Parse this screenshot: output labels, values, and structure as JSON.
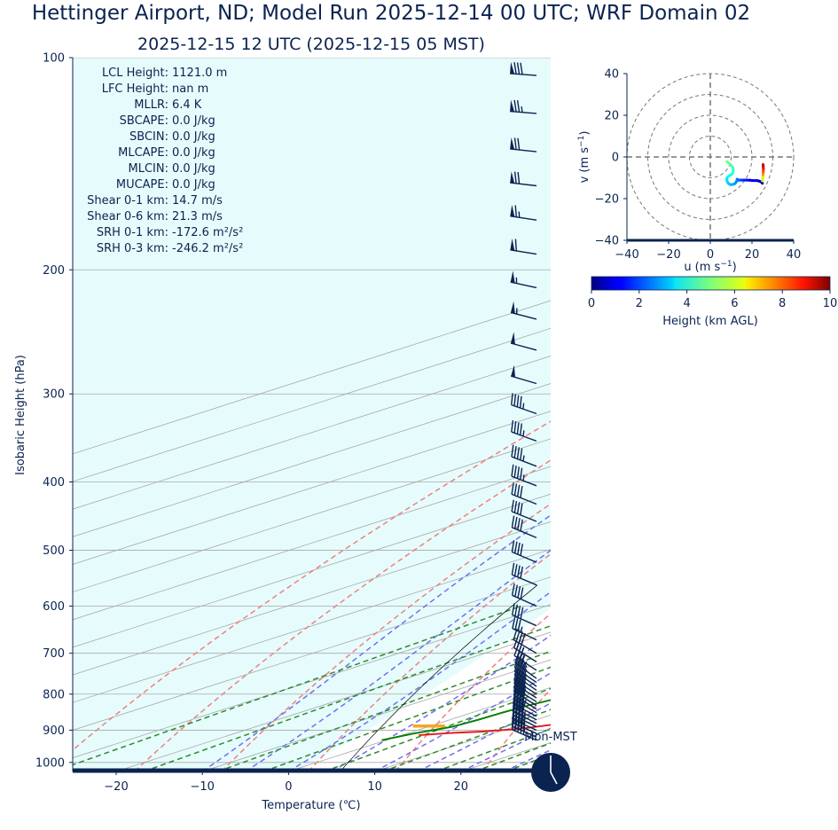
{
  "title": "Hettinger Airport, ND; Model Run 2025-12-14 00 UTC; WRF Domain 02",
  "subtitle": "2025-12-15 12 UTC  (2025-12-15 05 MST)",
  "params": [
    {
      "label": "LCL Height:",
      "value": "1121.0 m"
    },
    {
      "label": "LFC Height:",
      "value": "nan m"
    },
    {
      "label": "MLLR:",
      "value": "6.4 K"
    },
    {
      "label": "SBCAPE:",
      "value": "0.0 J/kg"
    },
    {
      "label": "SBCIN:",
      "value": "0.0 J/kg"
    },
    {
      "label": "MLCAPE:",
      "value": "0.0 J/kg"
    },
    {
      "label": "MLCIN:",
      "value": "0.0 J/kg"
    },
    {
      "label": "MUCAPE:",
      "value": "0.0 J/kg"
    },
    {
      "label": "Shear 0-1 km:",
      "value": "14.7 m/s"
    },
    {
      "label": "Shear 0-6 km:",
      "value": "21.3 m/s"
    },
    {
      "label": "SRH 0-1 km:",
      "value": "-172.6 m²/s²"
    },
    {
      "label": "SRH 0-3 km:",
      "value": "-246.2 m²/s²"
    }
  ],
  "clock_label": "Mon-MST",
  "colors": {
    "temperature": "#e41a1c",
    "dewpoint": "#008000",
    "dry_adiabat": "#f08080",
    "moist_adiabat": "#7070f0",
    "mixing_ratio": "#2e8b2e",
    "isotherm": "#a8a8a8",
    "cape_fill": "#e6fcfc",
    "navy": "#0a2350",
    "lcl_marker": "#f5a623"
  },
  "chart_data": [
    {
      "type": "skewt",
      "xlabel": "Temperature (℃)",
      "ylabel": "Isobaric Height (hPa)",
      "xlim": [
        -25,
        28.5
      ],
      "ylim": [
        1030,
        100
      ],
      "xticks": [
        -20,
        -10,
        0,
        10,
        20
      ],
      "yticks": [
        100,
        200,
        300,
        400,
        500,
        600,
        700,
        800,
        900,
        1000
      ],
      "temperature": {
        "p": [
          915,
          908,
          904,
          898,
          893,
          885,
          870,
          850,
          830,
          810,
          790,
          770,
          750,
          720,
          690,
          660,
          630,
          600,
          570,
          540,
          510,
          480,
          450,
          420,
          390,
          360,
          330,
          300,
          270,
          250,
          230,
          215,
          200,
          185,
          175,
          165,
          150,
          140,
          130,
          120,
          110,
          100
        ],
        "t": [
          2.0,
          5.0,
          8.0,
          10.5,
          12.0,
          13.5,
          14.3,
          14.5,
          14.8,
          15.5,
          16.0,
          16.0,
          15.9,
          15.8,
          15.3,
          14.6,
          13.8,
          12.9,
          11.9,
          10.7,
          9.4,
          8.0,
          6.4,
          4.7,
          2.9,
          0.8,
          -1.5,
          -3.7,
          -5.9,
          -7.2,
          -7.0,
          -6.3,
          -4.2,
          -1.8,
          0.8,
          4.2,
          7.8,
          9.2,
          10.4,
          11.4,
          12.9,
          14.9
        ]
      },
      "dewpoint": {
        "p": [
          930,
          910,
          890,
          870,
          850,
          830,
          810,
          790,
          770,
          750,
          730,
          710,
          690,
          670,
          650,
          630,
          600,
          570,
          540,
          510,
          480,
          450,
          420,
          390,
          360,
          330,
          300,
          270,
          250,
          230,
          210,
          200,
          185,
          175,
          165,
          150,
          140,
          130,
          120,
          110,
          100
        ],
        "t": [
          -0.5,
          0.8,
          2.8,
          3.3,
          3.5,
          3.9,
          4.8,
          6.8,
          8.5,
          8.8,
          7.4,
          4.5,
          1.3,
          0.6,
          0.1,
          -0.2,
          -0.4,
          -0.2,
          0.3,
          0.8,
          1.3,
          1.9,
          2.5,
          2.5,
          2.1,
          0.4,
          -1.9,
          -4.1,
          -5.5,
          -6.8,
          -8.0,
          -8.3,
          -8.4,
          -8.4,
          -8.4,
          -6.7,
          -6.8,
          -7.2,
          -8.0,
          -8.3,
          -8.0
        ]
      },
      "lcl": {
        "p": 888,
        "t_range": [
          -2.0,
          1.7
        ]
      },
      "wind_barbs": [
        {
          "p": 930,
          "u": 21,
          "v": -9
        },
        {
          "p": 920,
          "u": 21,
          "v": -9
        },
        {
          "p": 910,
          "u": 20,
          "v": -9
        },
        {
          "p": 900,
          "u": 20,
          "v": -9
        },
        {
          "p": 890,
          "u": 20,
          "v": -10
        },
        {
          "p": 880,
          "u": 20,
          "v": -10
        },
        {
          "p": 870,
          "u": 19,
          "v": -10
        },
        {
          "p": 860,
          "u": 19,
          "v": -10
        },
        {
          "p": 850,
          "u": 19,
          "v": -11
        },
        {
          "p": 840,
          "u": 18,
          "v": -11
        },
        {
          "p": 830,
          "u": 18,
          "v": -11
        },
        {
          "p": 820,
          "u": 18,
          "v": -11
        },
        {
          "p": 810,
          "u": 17,
          "v": -11
        },
        {
          "p": 800,
          "u": 17,
          "v": -11
        },
        {
          "p": 790,
          "u": 16,
          "v": -11
        },
        {
          "p": 780,
          "u": 16,
          "v": -11
        },
        {
          "p": 770,
          "u": 16,
          "v": -11
        },
        {
          "p": 760,
          "u": 15,
          "v": -11
        },
        {
          "p": 740,
          "u": 15,
          "v": -10
        },
        {
          "p": 720,
          "u": 16,
          "v": -10
        },
        {
          "p": 700,
          "u": 17,
          "v": -10
        },
        {
          "p": 670,
          "u": 17,
          "v": -8
        },
        {
          "p": 640,
          "u": 18,
          "v": -8
        },
        {
          "p": 600,
          "u": 18,
          "v": -8
        },
        {
          "p": 560,
          "u": 19,
          "v": -8
        },
        {
          "p": 520,
          "u": 19,
          "v": -8
        },
        {
          "p": 480,
          "u": 19,
          "v": -8
        },
        {
          "p": 455,
          "u": 20,
          "v": -8
        },
        {
          "p": 430,
          "u": 20,
          "v": -8
        },
        {
          "p": 405,
          "u": 21,
          "v": -8
        },
        {
          "p": 380,
          "u": 21,
          "v": -8
        },
        {
          "p": 350,
          "u": 22,
          "v": -8
        },
        {
          "p": 320,
          "u": 23,
          "v": -8
        },
        {
          "p": 290,
          "u": 24,
          "v": -7
        },
        {
          "p": 260,
          "u": 26,
          "v": -7
        },
        {
          "p": 235,
          "u": 27,
          "v": -7
        },
        {
          "p": 212,
          "u": 28,
          "v": -6
        },
        {
          "p": 190,
          "u": 31,
          "v": -5
        },
        {
          "p": 170,
          "u": 33,
          "v": -5
        },
        {
          "p": 152,
          "u": 35,
          "v": -4
        },
        {
          "p": 136,
          "u": 37,
          "v": -4
        },
        {
          "p": 120,
          "u": 39,
          "v": -3
        },
        {
          "p": 106,
          "u": 40,
          "v": -3
        }
      ]
    },
    {
      "type": "hodograph",
      "xlabel": "u (m s⁻¹)",
      "ylabel": "v (m s⁻¹)",
      "xlim": [
        -40,
        40
      ],
      "ylim": [
        -40,
        40
      ],
      "xticks": [
        -40,
        -20,
        0,
        20,
        40
      ],
      "yticks": [
        40,
        20,
        0,
        -20,
        -40
      ],
      "rings": [
        10,
        20,
        30,
        40
      ],
      "u": [
        25.0,
        24.8,
        24.5,
        24.0,
        23.5,
        22.8,
        21.8,
        20.5,
        19.0,
        17.6,
        16.3,
        15.3,
        14.5,
        13.9,
        13.3,
        12.9,
        12.8,
        12.5,
        11.8,
        10.8,
        9.7,
        8.8,
        8.1,
        7.9,
        8.2,
        8.9,
        9.9,
        10.7,
        11.0,
        10.9,
        10.2,
        9.3,
        8.5,
        7.9
      ],
      "v": [
        -12.7,
        -12.4,
        -12.1,
        -11.8,
        -11.6,
        -11.4,
        -11.3,
        -11.3,
        -11.2,
        -11.1,
        -11.1,
        -11.1,
        -11.1,
        -11.1,
        -11.1,
        -10.7,
        -11.2,
        -11.9,
        -12.8,
        -13.2,
        -13.3,
        -12.8,
        -11.8,
        -10.6,
        -9.7,
        -9.1,
        -8.6,
        -7.8,
        -6.6,
        -5.3,
        -4.2,
        -3.3,
        -2.6,
        -2.2
      ],
      "height_km": [
        0.1,
        0.2,
        0.35,
        0.5,
        0.65,
        0.8,
        0.95,
        1.1,
        1.25,
        1.4,
        1.55,
        1.7,
        1.85,
        2.0,
        2.15,
        2.3,
        2.45,
        2.6,
        2.75,
        2.9,
        3.05,
        3.2,
        3.35,
        3.5,
        3.65,
        3.8,
        3.95,
        4.1,
        4.25,
        4.4,
        4.55,
        4.7,
        4.85,
        5.0
      ],
      "upper": {
        "u": [
          25.0,
          25.2,
          25.3,
          25.4,
          25.5,
          25.4,
          25.3
        ],
        "v": [
          -11.5,
          -10.0,
          -8.6,
          -7.2,
          -5.8,
          -4.6,
          -3.6
        ],
        "height_km": [
          5.5,
          6.5,
          7.3,
          8.0,
          8.7,
          9.3,
          9.9
        ]
      }
    },
    {
      "type": "colorbar",
      "label": "Height (km AGL)",
      "range": [
        0,
        10
      ],
      "ticks": [
        0,
        2,
        4,
        6,
        8,
        10
      ],
      "colormap": "jet"
    }
  ]
}
